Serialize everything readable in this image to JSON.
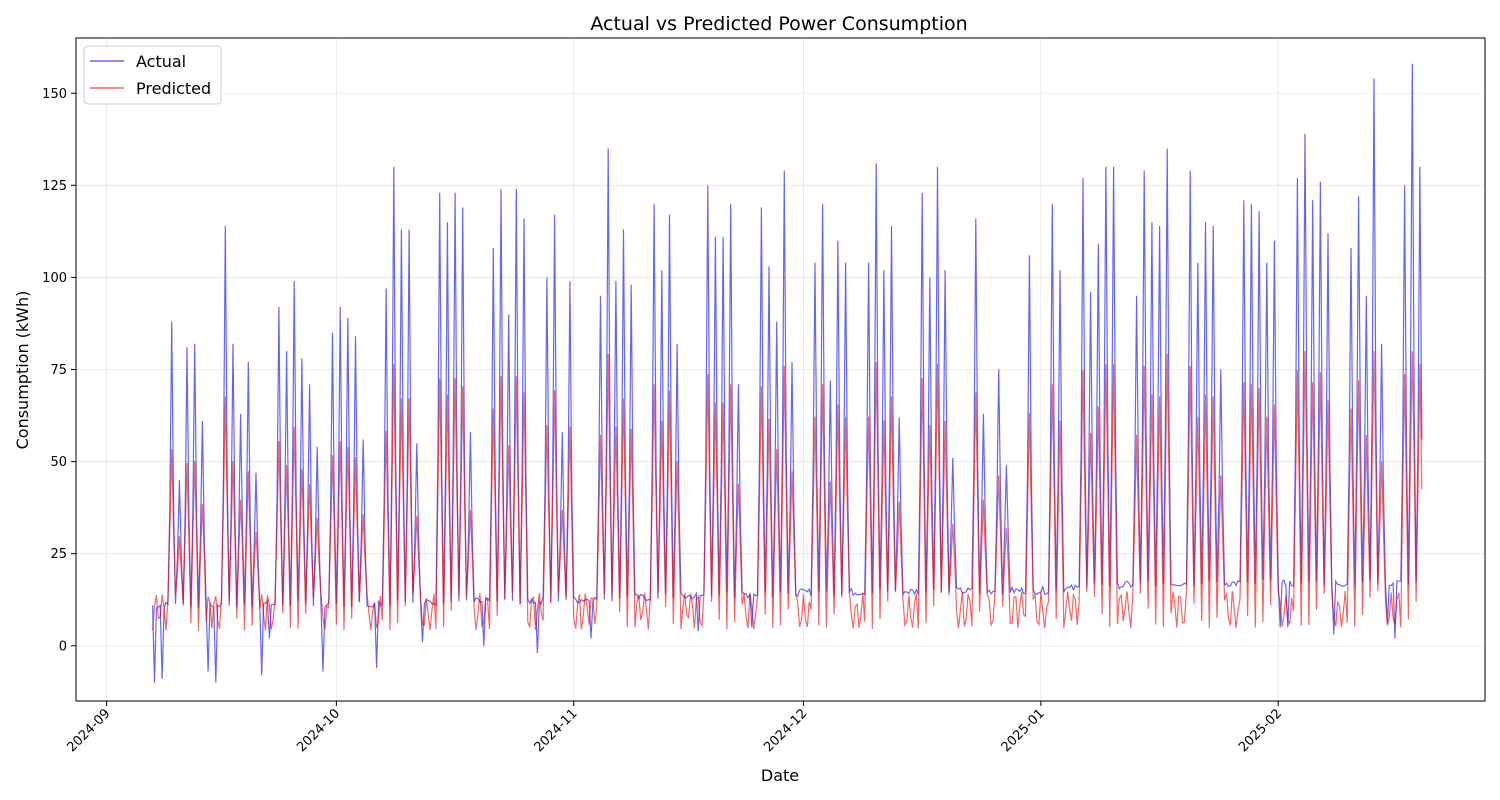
{
  "chart_data": {
    "type": "line",
    "title": "Actual vs Predicted Power Consumption",
    "xlabel": "Date",
    "ylabel": "Consumption (kWh)",
    "x_range": [
      "2024-08-28",
      "2025-02-28"
    ],
    "ylim": [
      -15,
      165
    ],
    "x_ticks": [
      "2024-09",
      "2024-10",
      "2024-11",
      "2024-12",
      "2025-01",
      "2025-02"
    ],
    "y_ticks": [
      0,
      25,
      50,
      75,
      100,
      125,
      150
    ],
    "grid": true,
    "legend_position": "top-left",
    "data_start": "2024-09-07",
    "data_end": "2025-02-19",
    "points_per_day": 4,
    "series": [
      {
        "name": "Actual",
        "color": "#0000ee",
        "baseline": [
          [
            "2024-09-07",
            11
          ],
          [
            "2024-10-05",
            11.5
          ],
          [
            "2024-11-01",
            12.5
          ],
          [
            "2024-12-01",
            14.5
          ],
          [
            "2025-01-01",
            15
          ],
          [
            "2025-01-15",
            17
          ],
          [
            "2025-02-19",
            17
          ]
        ],
        "peaks": [
          [
            "2024-09-09",
            88
          ],
          [
            "2024-09-10",
            45
          ],
          [
            "2024-09-11",
            81
          ],
          [
            "2024-09-12",
            82
          ],
          [
            "2024-09-13",
            61
          ],
          [
            "2024-09-16",
            114
          ],
          [
            "2024-09-17",
            82
          ],
          [
            "2024-09-18",
            63
          ],
          [
            "2024-09-19",
            77
          ],
          [
            "2024-09-20",
            47
          ],
          [
            "2024-09-23",
            92
          ],
          [
            "2024-09-24",
            80
          ],
          [
            "2024-09-25",
            99
          ],
          [
            "2024-09-26",
            78
          ],
          [
            "2024-09-27",
            71
          ],
          [
            "2024-09-28",
            54
          ],
          [
            "2024-09-30",
            85
          ],
          [
            "2024-10-01",
            92
          ],
          [
            "2024-10-02",
            89
          ],
          [
            "2024-10-03",
            84
          ],
          [
            "2024-10-04",
            56
          ],
          [
            "2024-10-07",
            97
          ],
          [
            "2024-10-08",
            130
          ],
          [
            "2024-10-09",
            113
          ],
          [
            "2024-10-10",
            113
          ],
          [
            "2024-10-11",
            55
          ],
          [
            "2024-10-14",
            123
          ],
          [
            "2024-10-15",
            115
          ],
          [
            "2024-10-16",
            123
          ],
          [
            "2024-10-17",
            119
          ],
          [
            "2024-10-18",
            58
          ],
          [
            "2024-10-21",
            108
          ],
          [
            "2024-10-22",
            124
          ],
          [
            "2024-10-23",
            90
          ],
          [
            "2024-10-24",
            124
          ],
          [
            "2024-10-25",
            116
          ],
          [
            "2024-10-28",
            100
          ],
          [
            "2024-10-29",
            117
          ],
          [
            "2024-10-30",
            58
          ],
          [
            "2024-10-31",
            99
          ],
          [
            "2024-11-04",
            95
          ],
          [
            "2024-11-05",
            135
          ],
          [
            "2024-11-06",
            99
          ],
          [
            "2024-11-07",
            113
          ],
          [
            "2024-11-08",
            98
          ],
          [
            "2024-11-11",
            120
          ],
          [
            "2024-11-12",
            102
          ],
          [
            "2024-11-13",
            117
          ],
          [
            "2024-11-14",
            82
          ],
          [
            "2024-11-18",
            125
          ],
          [
            "2024-11-19",
            111
          ],
          [
            "2024-11-20",
            111
          ],
          [
            "2024-11-21",
            120
          ],
          [
            "2024-11-22",
            71
          ],
          [
            "2024-11-25",
            119
          ],
          [
            "2024-11-26",
            103
          ],
          [
            "2024-11-27",
            88
          ],
          [
            "2024-11-28",
            129
          ],
          [
            "2024-11-29",
            77
          ],
          [
            "2024-12-02",
            104
          ],
          [
            "2024-12-03",
            120
          ],
          [
            "2024-12-04",
            72
          ],
          [
            "2024-12-05",
            110
          ],
          [
            "2024-12-06",
            104
          ],
          [
            "2024-12-09",
            104
          ],
          [
            "2024-12-10",
            131
          ],
          [
            "2024-12-11",
            102
          ],
          [
            "2024-12-12",
            114
          ],
          [
            "2024-12-13",
            62
          ],
          [
            "2024-12-16",
            123
          ],
          [
            "2024-12-17",
            100
          ],
          [
            "2024-12-18",
            130
          ],
          [
            "2024-12-19",
            102
          ],
          [
            "2024-12-20",
            51
          ],
          [
            "2024-12-23",
            116
          ],
          [
            "2024-12-24",
            63
          ],
          [
            "2024-12-26",
            75
          ],
          [
            "2024-12-27",
            49
          ],
          [
            "2024-12-30",
            106
          ],
          [
            "2025-01-02",
            120
          ],
          [
            "2025-01-03",
            102
          ],
          [
            "2025-01-06",
            127
          ],
          [
            "2025-01-07",
            96
          ],
          [
            "2025-01-08",
            109
          ],
          [
            "2025-01-09",
            130
          ],
          [
            "2025-01-10",
            130
          ],
          [
            "2025-01-13",
            95
          ],
          [
            "2025-01-14",
            129
          ],
          [
            "2025-01-15",
            115
          ],
          [
            "2025-01-16",
            114
          ],
          [
            "2025-01-17",
            135
          ],
          [
            "2025-01-20",
            129
          ],
          [
            "2025-01-21",
            104
          ],
          [
            "2025-01-22",
            115
          ],
          [
            "2025-01-23",
            114
          ],
          [
            "2025-01-24",
            75
          ],
          [
            "2025-01-27",
            121
          ],
          [
            "2025-01-28",
            120
          ],
          [
            "2025-01-29",
            118
          ],
          [
            "2025-01-30",
            104
          ],
          [
            "2025-01-31",
            110
          ],
          [
            "2025-02-03",
            127
          ],
          [
            "2025-02-04",
            139
          ],
          [
            "2025-02-05",
            121
          ],
          [
            "2025-02-06",
            126
          ],
          [
            "2025-02-07",
            112
          ],
          [
            "2025-02-10",
            108
          ],
          [
            "2025-02-11",
            122
          ],
          [
            "2025-02-12",
            95
          ],
          [
            "2025-02-13",
            154
          ],
          [
            "2025-02-14",
            82
          ],
          [
            "2025-02-17",
            125
          ],
          [
            "2025-02-18",
            158
          ],
          [
            "2025-02-19",
            130
          ]
        ],
        "dips": [
          [
            "2024-09-07",
            -10
          ],
          [
            "2024-09-08",
            -9
          ],
          [
            "2024-09-13",
            5
          ],
          [
            "2024-09-14",
            -7
          ],
          [
            "2024-09-15",
            -10
          ],
          [
            "2024-09-21",
            -8
          ],
          [
            "2024-09-22",
            2
          ],
          [
            "2024-09-29",
            -7
          ],
          [
            "2024-09-30",
            0
          ],
          [
            "2024-10-06",
            -6
          ],
          [
            "2024-10-07",
            -7
          ],
          [
            "2024-10-12",
            1
          ],
          [
            "2024-10-20",
            0
          ],
          [
            "2024-10-27",
            -2
          ],
          [
            "2024-10-28",
            -1
          ],
          [
            "2024-11-03",
            2
          ],
          [
            "2024-11-17",
            4
          ],
          [
            "2024-11-24",
            5
          ],
          [
            "2025-02-01",
            5
          ],
          [
            "2025-02-02",
            5
          ],
          [
            "2025-02-08",
            3
          ],
          [
            "2025-02-15",
            6
          ],
          [
            "2025-02-16",
            2
          ]
        ]
      },
      {
        "name": "Predicted",
        "color": "#ee0000",
        "baseline": [
          [
            "2024-09-07",
            9
          ],
          [
            "2025-02-19",
            10
          ]
        ],
        "peak_scale": 0.55,
        "peak_max": 80
      }
    ]
  }
}
